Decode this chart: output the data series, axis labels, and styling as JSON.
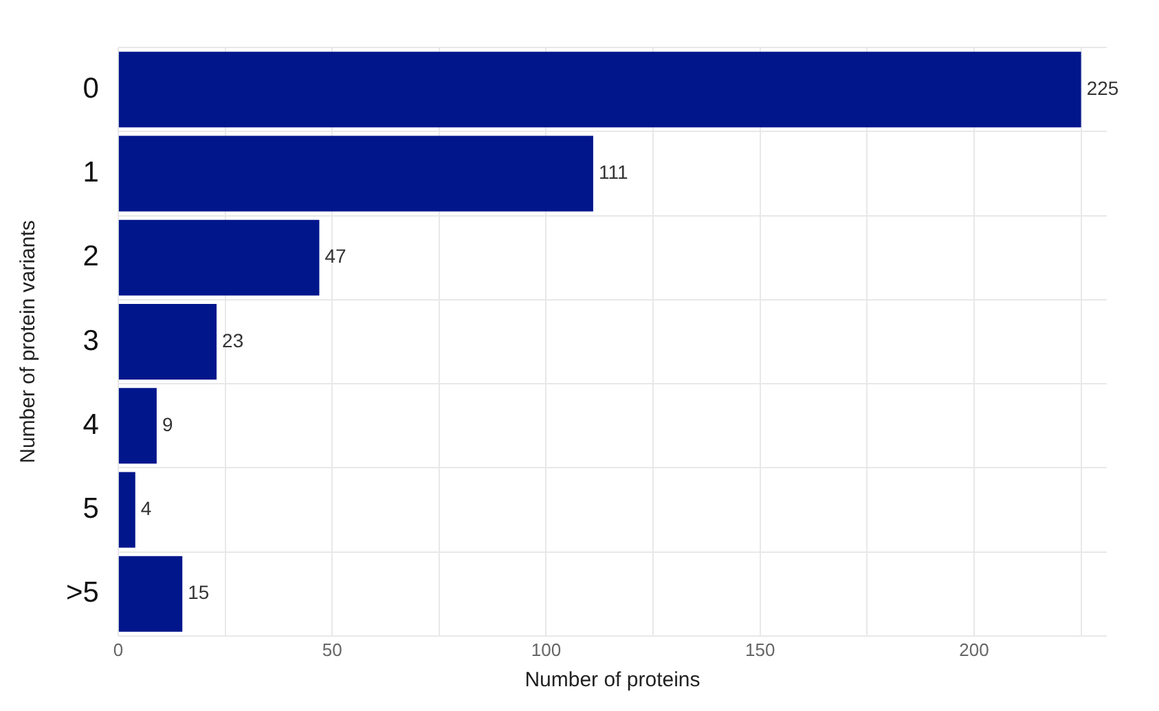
{
  "chart_data": {
    "type": "bar",
    "orientation": "horizontal",
    "xlabel": "Number of proteins",
    "ylabel": "Number of protein variants",
    "categories": [
      "0",
      "1",
      "2",
      "3",
      "4",
      "5",
      ">5"
    ],
    "values": [
      225,
      111,
      47,
      23,
      9,
      4,
      15
    ],
    "color": "#02168c",
    "xlim": [
      0,
      231
    ],
    "xticks": [
      0,
      {
        "value": 25,
        "label": null
      },
      50,
      {
        "value": 75,
        "label": null
      },
      100,
      {
        "value": 125,
        "label": null
      },
      150,
      {
        "value": 175,
        "label": null
      },
      200,
      {
        "value": 225,
        "label": null
      }
    ],
    "grid": true,
    "data_labels": true
  }
}
